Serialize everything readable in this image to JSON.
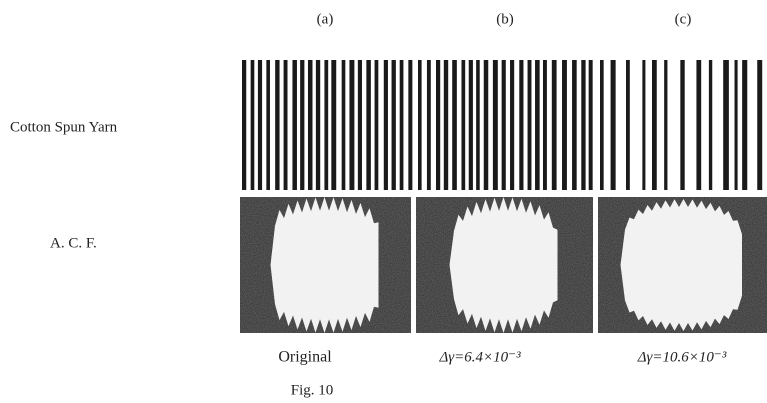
{
  "figure": {
    "column_labels": [
      "(a)",
      "(b)",
      "(c)"
    ],
    "row_labels": [
      "Cotton Spun Yarn",
      "A. C. F."
    ],
    "captions": [
      "Original",
      "Δγ=6.4×10⁻³",
      "Δγ=10.6×10⁻³"
    ],
    "label": "Fig. 10"
  }
}
